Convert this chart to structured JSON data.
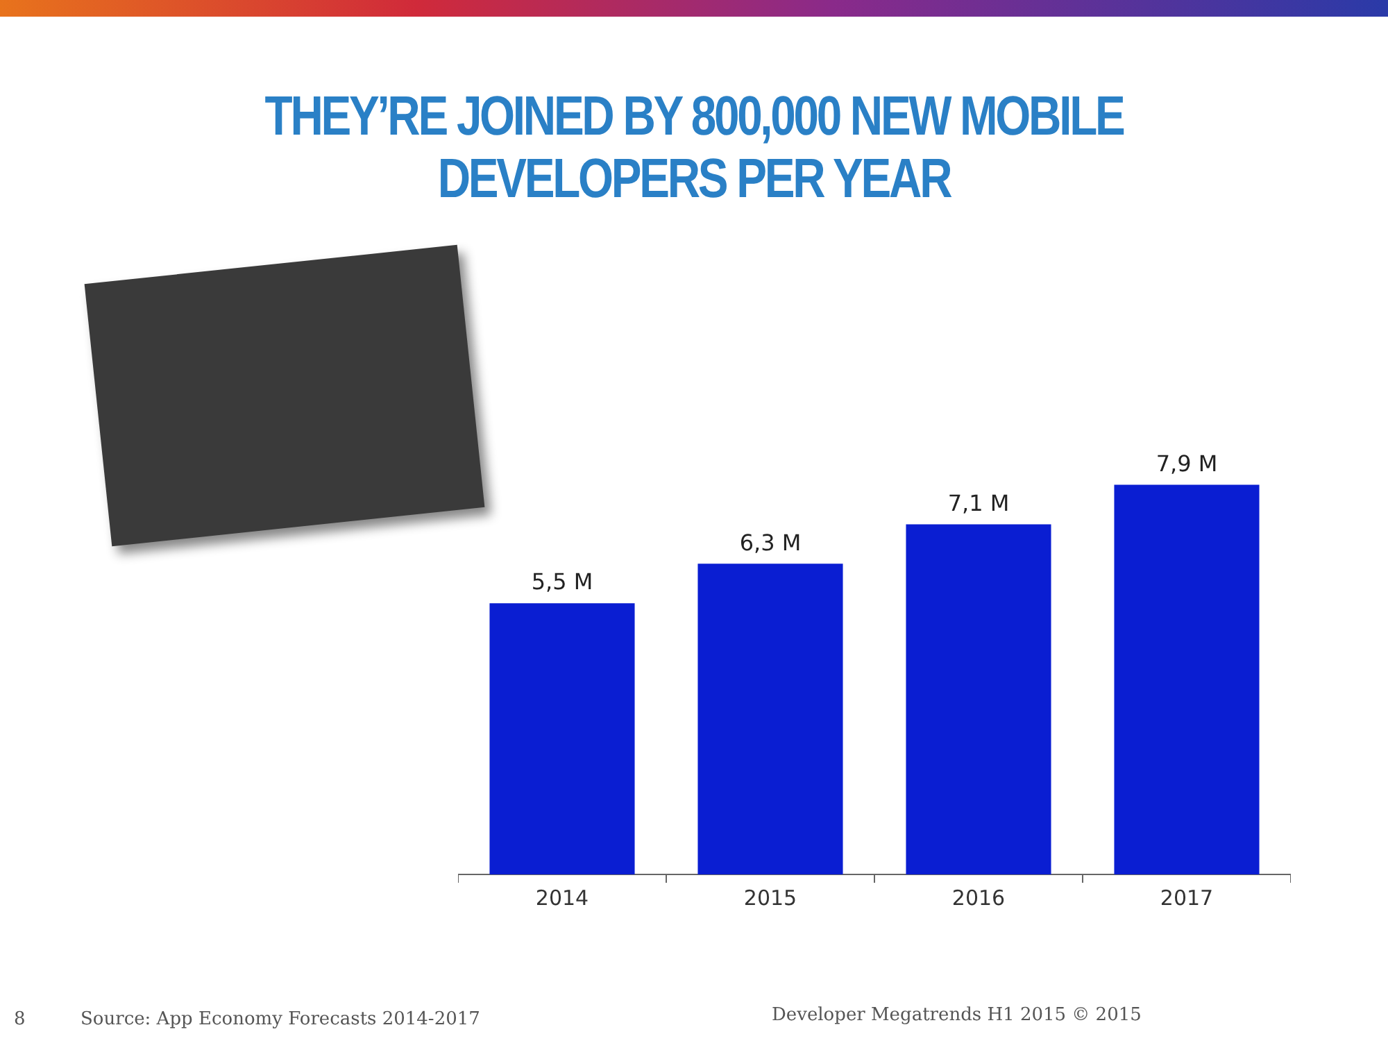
{
  "chart_data": {
    "type": "bar",
    "title": "THEY’RE JOINED BY 800,000 NEW MOBILE DEVELOPERS PER YEAR",
    "categories": [
      "2014",
      "2015",
      "2016",
      "2017"
    ],
    "values": [
      5.5,
      6.3,
      7.1,
      7.9
    ],
    "value_labels": [
      "5,5 M",
      "6,3 M",
      "7,1 M",
      "7,9 M"
    ],
    "color": "#0a1ed2",
    "grid": false,
    "legend": false,
    "annotations": [
      "Source: App Economy Forecasts 2014-2017",
      "Developer Megatrends H1 2015 © 2015",
      "8"
    ]
  }
}
